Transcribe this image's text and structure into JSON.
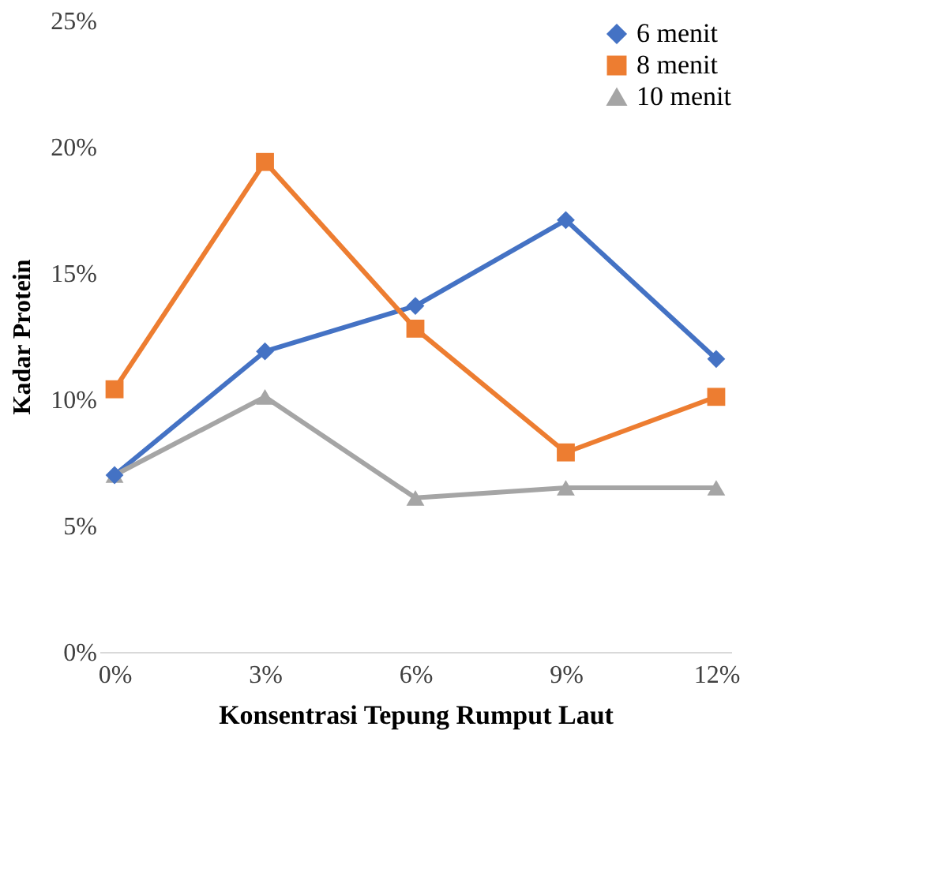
{
  "chart_data": {
    "type": "line",
    "xlabel": "Konsentrasi Tepung Rumput Laut",
    "ylabel": "Kadar Protein",
    "categories": [
      "0%",
      "3%",
      "6%",
      "9%",
      "12%"
    ],
    "series": [
      {
        "name": "6 menit",
        "color": "#4472c4",
        "marker": "diamond",
        "values": [
          7.0,
          11.9,
          13.7,
          17.1,
          11.6
        ]
      },
      {
        "name": "8 menit",
        "color": "#ed7d31",
        "marker": "square",
        "values": [
          10.4,
          19.4,
          12.8,
          7.9,
          10.1
        ]
      },
      {
        "name": "10 menit",
        "color": "#a5a5a5",
        "marker": "triangle",
        "values": [
          7.0,
          10.1,
          6.1,
          6.5,
          6.5
        ]
      }
    ],
    "ylim": [
      0,
      25
    ],
    "yticks": [
      {
        "value": 0,
        "label": "0%"
      },
      {
        "value": 5,
        "label": "5%"
      },
      {
        "value": 10,
        "label": "10%"
      },
      {
        "value": 15,
        "label": "15%"
      },
      {
        "value": 20,
        "label": "20%"
      },
      {
        "value": 25,
        "label": "25%"
      }
    ],
    "grid": false,
    "legend": "top right",
    "line_style": "solid"
  }
}
